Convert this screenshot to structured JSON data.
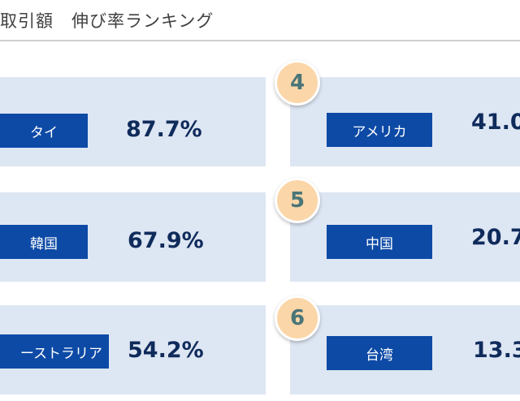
{
  "header": {
    "title": "取引額　伸び率ランキング"
  },
  "rankings": [
    {
      "rank": "",
      "country": "タイ",
      "value": "87.7%"
    },
    {
      "rank": "",
      "country": "韓国",
      "value": "67.9%"
    },
    {
      "rank": "",
      "country": "ーストラリア",
      "value": "54.2%"
    },
    {
      "rank": "4",
      "country": "アメリカ",
      "value": "41.0"
    },
    {
      "rank": "5",
      "country": "中国",
      "value": "20.7"
    },
    {
      "rank": "6",
      "country": "台湾",
      "value": "13.3"
    }
  ],
  "colors": {
    "card_bg": "#dde6f3",
    "label_bg": "#0d4aa6",
    "value_text": "#0f2b5b",
    "rank_badge": "#fbd6a8",
    "rank_text": "#4a7578"
  }
}
